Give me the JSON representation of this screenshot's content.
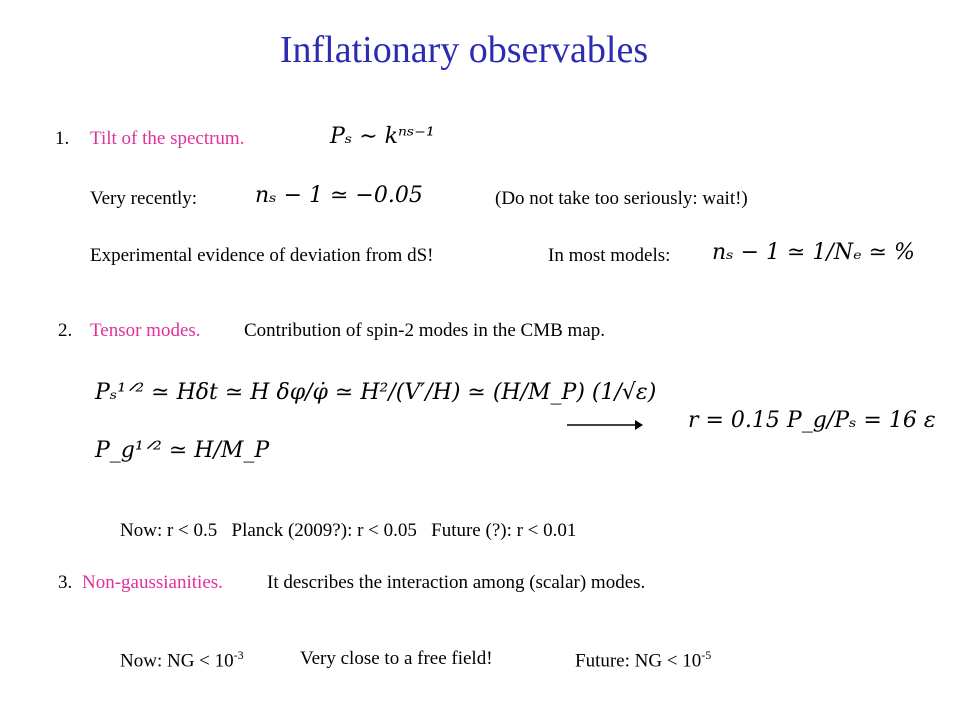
{
  "title": "Inflationary observables",
  "items": [
    {
      "number": "1.",
      "heading": "Tilt of the spectrum.",
      "formula": "Pₛ ∼ kⁿˢ⁻¹",
      "lines": [
        {
          "label": "Very recently:",
          "formula": "nₛ − 1 ≃ −0.05",
          "note": "(Do not take too seriously: wait!)"
        },
        {
          "label": "Experimental evidence of deviation from dS!",
          "label2": "In most models:",
          "formula": "nₛ − 1 ≃ 1/Nₑ ≃ %"
        }
      ]
    },
    {
      "number": "2.",
      "heading": "Tensor modes.",
      "text": "Contribution of spin-2 modes in the CMB map.",
      "formulas": [
        "Pₛ¹ᐟ² ≃ Hδt ≃ H δφ/φ̇ ≃ H²/(V′/H) ≃ (H/M_P) (1/√ε)",
        "P_g¹ᐟ² ≃ H/M_P",
        "r = 0.15 P_g/Pₛ = 16 ε"
      ],
      "bounds": "Now: r < 0.5   Planck (2009?): r < 0.05   Future (?): r < 0.01"
    },
    {
      "number": "3.",
      "heading": "Non-gaussianities.",
      "text": "It describes the interaction among (scalar) modes.",
      "bounds": [
        {
          "text": "Now: NG < 10",
          "sup": "-3"
        },
        {
          "text": "Very close to a free field!"
        },
        {
          "text": "Future: NG < 10",
          "sup": "-5"
        }
      ]
    }
  ]
}
